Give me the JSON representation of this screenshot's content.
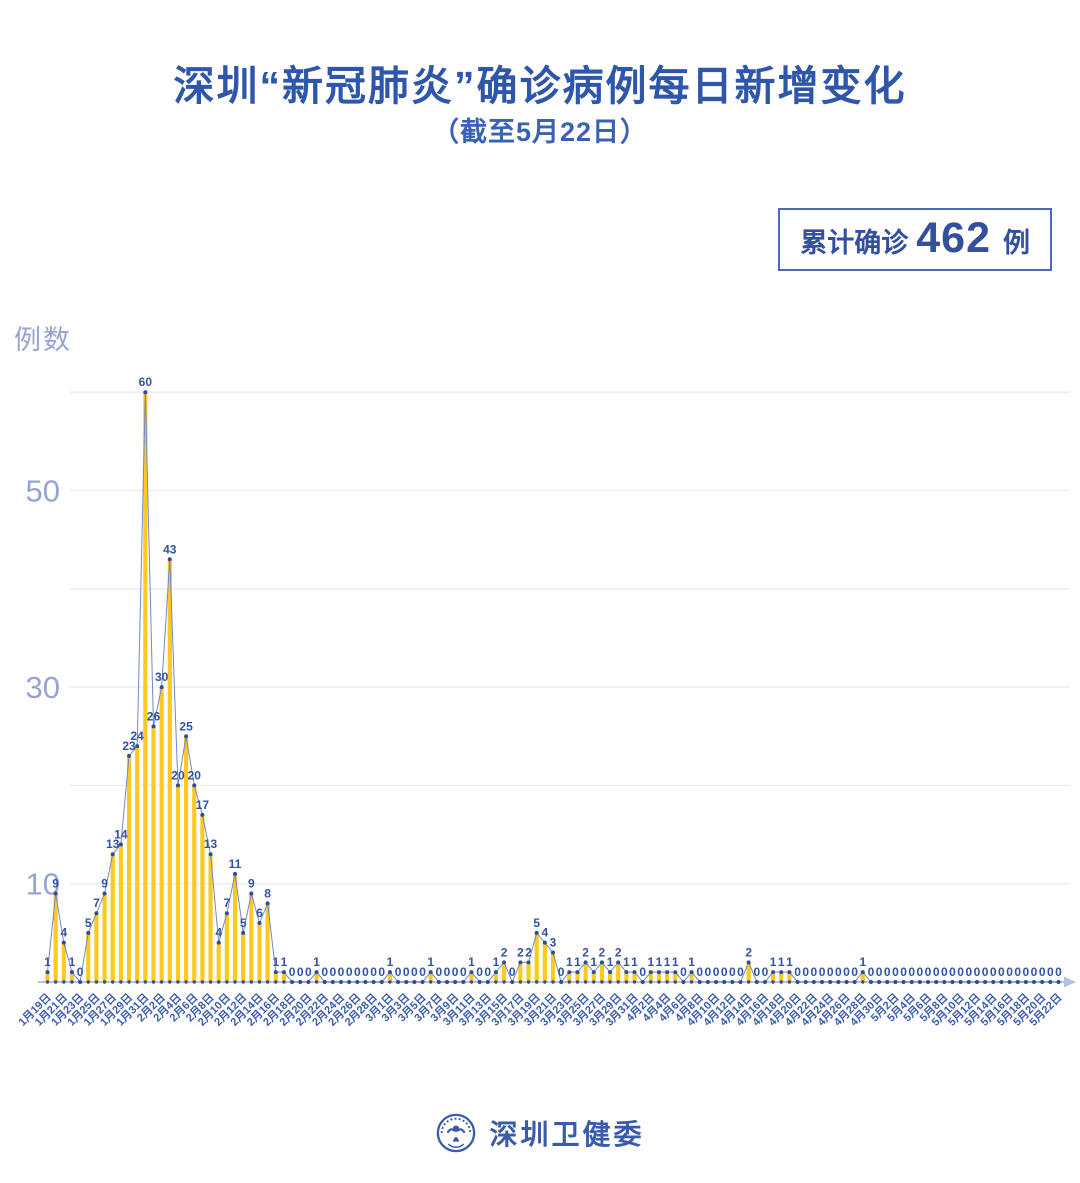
{
  "title": {
    "main": "深圳“新冠肺炎”确诊病例每日新增变化",
    "subtitle": "（截至5月22日）"
  },
  "badge": {
    "label": "累计确诊",
    "value": "462",
    "unit": "例",
    "text_color": "#33509F",
    "border_color": "#4C68BA"
  },
  "footer": {
    "org_name": "深圳卫健委"
  },
  "chart_data": {
    "type": "bar",
    "title": "深圳新冠肺炎确诊病例每日新增变化",
    "xlabel": "",
    "ylabel": "例数",
    "ylim": [
      0,
      62
    ],
    "gridlines": [
      10,
      20,
      30,
      40,
      50,
      60
    ],
    "yticks_labeled": [
      10,
      30,
      50
    ],
    "x_label_every": 2,
    "legend": "none",
    "colors": {
      "bar": "#FFC91F",
      "line": "#7089C6",
      "dot": "#2C4C9C",
      "value_label": "#3053A4",
      "axis": "#B9C2DC",
      "x_label": "#3A5CAD",
      "y_label": "#98A3D4",
      "gridline": "#EAEAF0"
    },
    "x": [
      "1月19日",
      "1月20日",
      "1月21日",
      "1月22日",
      "1月23日",
      "1月24日",
      "1月25日",
      "1月26日",
      "1月27日",
      "1月28日",
      "1月29日",
      "1月30日",
      "1月31日",
      "2月1日",
      "2月2日",
      "2月3日",
      "2月4日",
      "2月5日",
      "2月6日",
      "2月7日",
      "2月8日",
      "2月9日",
      "2月10日",
      "2月11日",
      "2月12日",
      "2月13日",
      "2月14日",
      "2月15日",
      "2月16日",
      "2月17日",
      "2月18日",
      "2月19日",
      "2月20日",
      "2月21日",
      "2月22日",
      "2月23日",
      "2月24日",
      "2月25日",
      "2月26日",
      "2月27日",
      "2月28日",
      "2月29日",
      "3月1日",
      "3月2日",
      "3月3日",
      "3月4日",
      "3月5日",
      "3月6日",
      "3月7日",
      "3月8日",
      "3月9日",
      "3月10日",
      "3月11日",
      "3月12日",
      "3月13日",
      "3月14日",
      "3月15日",
      "3月16日",
      "3月17日",
      "3月18日",
      "3月19日",
      "3月20日",
      "3月21日",
      "3月22日",
      "3月23日",
      "3月24日",
      "3月25日",
      "3月26日",
      "3月27日",
      "3月28日",
      "3月29日",
      "3月30日",
      "3月31日",
      "4月1日",
      "4月2日",
      "4月3日",
      "4月4日",
      "4月5日",
      "4月6日",
      "4月7日",
      "4月8日",
      "4月9日",
      "4月10日",
      "4月11日",
      "4月12日",
      "4月13日",
      "4月14日",
      "4月15日",
      "4月16日",
      "4月17日",
      "4月18日",
      "4月19日",
      "4月20日",
      "4月21日",
      "4月22日",
      "4月23日",
      "4月24日",
      "4月25日",
      "4月26日",
      "4月27日",
      "4月28日",
      "4月29日",
      "4月30日",
      "5月1日",
      "5月2日",
      "5月3日",
      "5月4日",
      "5月5日",
      "5月6日",
      "5月7日",
      "5月8日",
      "5月9日",
      "5月10日",
      "5月11日",
      "5月12日",
      "5月13日",
      "5月14日",
      "5月15日",
      "5月16日",
      "5月17日",
      "5月18日",
      "5月19日",
      "5月20日",
      "5月21日",
      "5月22日"
    ],
    "values": [
      1,
      9,
      4,
      1,
      0,
      5,
      7,
      9,
      13,
      14,
      23,
      24,
      60,
      26,
      30,
      43,
      20,
      25,
      20,
      17,
      13,
      4,
      7,
      11,
      5,
      9,
      6,
      8,
      1,
      1,
      0,
      0,
      0,
      1,
      0,
      0,
      0,
      0,
      0,
      0,
      0,
      0,
      1,
      0,
      0,
      0,
      0,
      1,
      0,
      0,
      0,
      0,
      1,
      0,
      0,
      1,
      2,
      0,
      2,
      2,
      5,
      4,
      3,
      0,
      1,
      1,
      2,
      1,
      2,
      1,
      2,
      1,
      1,
      0,
      1,
      1,
      1,
      1,
      0,
      1,
      0,
      0,
      0,
      0,
      0,
      0,
      2,
      0,
      0,
      1,
      1,
      1,
      0,
      0,
      0,
      0,
      0,
      0,
      0,
      0,
      1,
      0,
      0,
      0,
      0,
      0,
      0,
      0,
      0,
      0,
      0,
      0,
      0,
      0,
      0,
      0,
      0,
      0,
      0,
      0,
      0,
      0,
      0,
      0,
      0
    ]
  }
}
